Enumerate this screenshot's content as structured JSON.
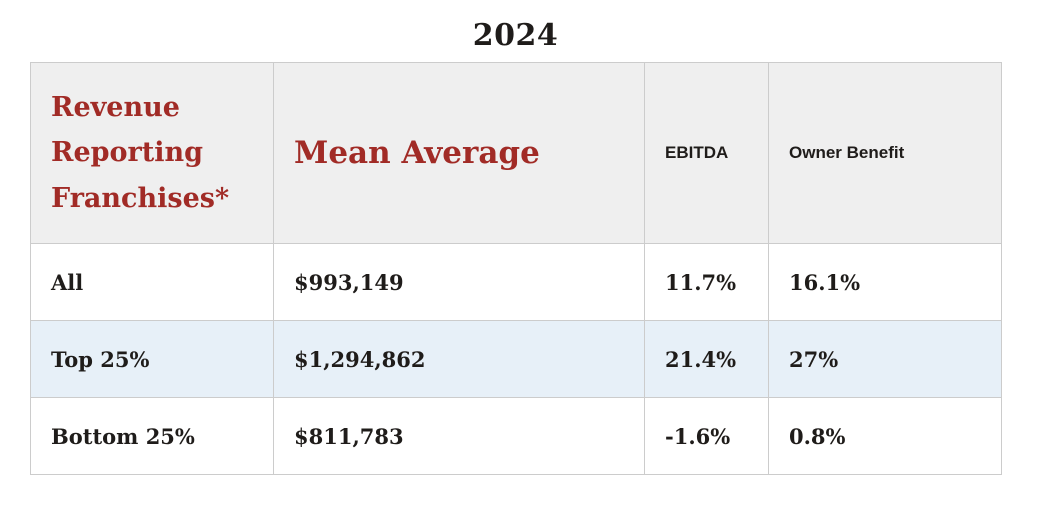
{
  "title": "2024",
  "colors": {
    "page_bg": "#FFFFFF",
    "accent": "#A12B26",
    "text": "#1F1C1A",
    "header_bg": "#EFEFEF",
    "highlight_bg": "#E7F0F8",
    "border": "#CCCCCC"
  },
  "chart_data": {
    "type": "table",
    "title": "2024",
    "columns": [
      "Revenue Reporting Franchises*",
      "Mean Average",
      "EBITDA",
      "Owner Benefit"
    ],
    "rows": [
      [
        "All",
        "$993,149",
        "11.7%",
        "16.1%"
      ],
      [
        "Top 25%",
        "$1,294,862",
        "21.4%",
        "27%"
      ],
      [
        "Bottom 25%",
        "$811,783",
        "-1.6%",
        "0.8%"
      ]
    ],
    "highlighted_row_index": 1,
    "layout": "header row shaded gray, first two header labels dark red slab serif, second data row shaded light blue"
  }
}
